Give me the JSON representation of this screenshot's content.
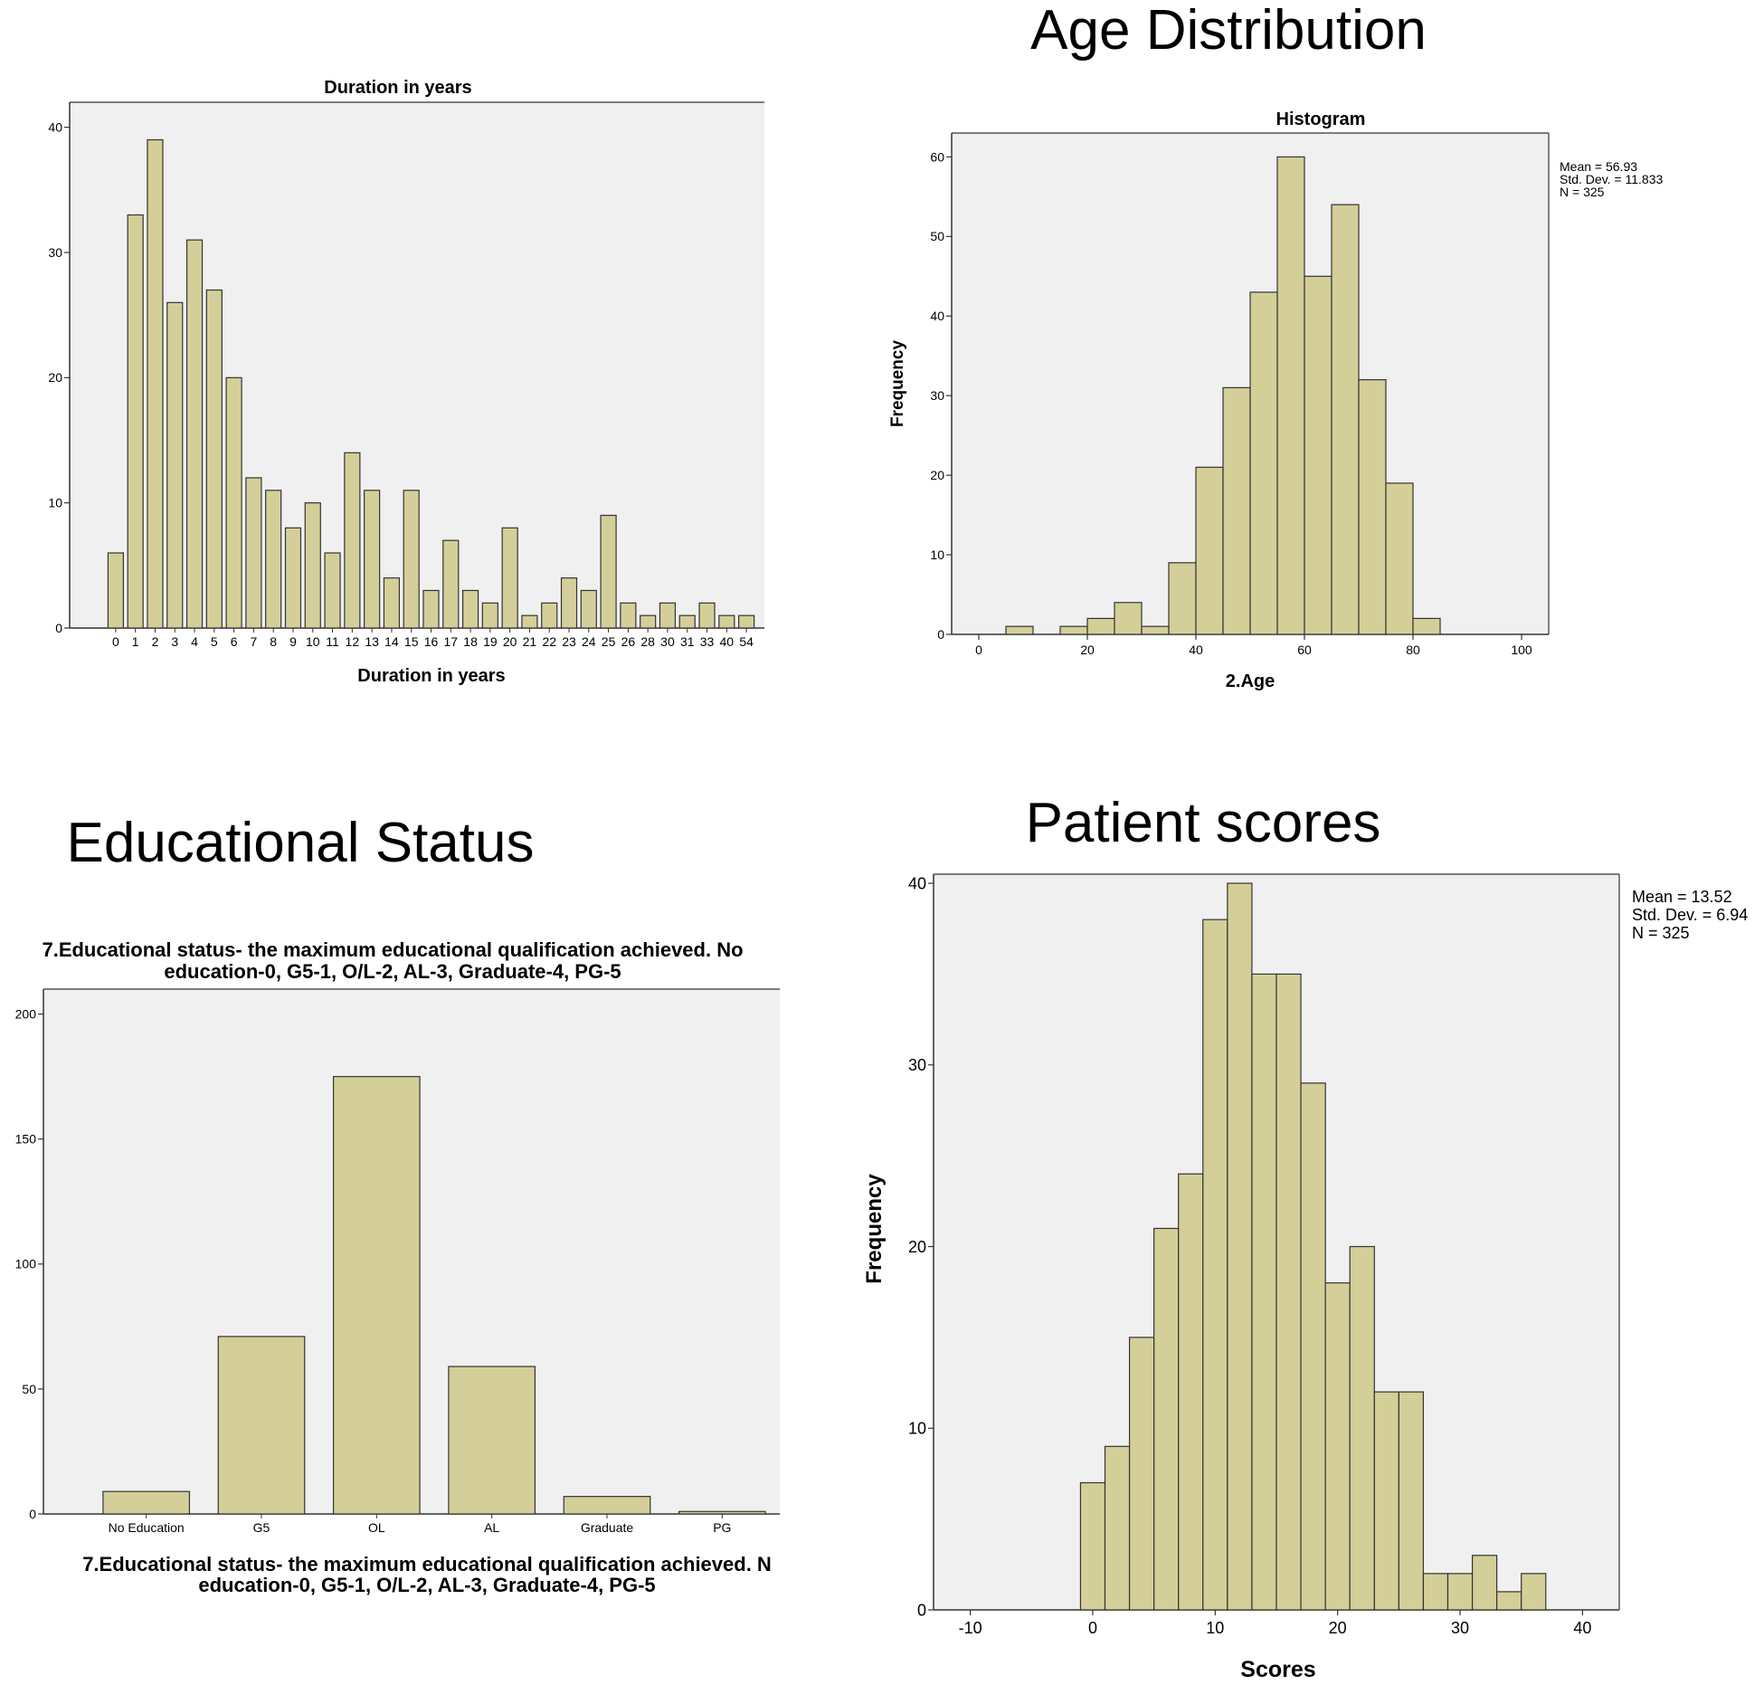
{
  "slide": {
    "headings": [
      "Age Distribution",
      "Educational Status",
      "Patient scores"
    ]
  },
  "chart_data": [
    {
      "id": "duration",
      "type": "bar",
      "title": "Duration in years",
      "xlabel": "Duration in years",
      "ylabel": "",
      "ylim": [
        0,
        42
      ],
      "yticks": [
        0,
        10,
        20,
        30,
        40
      ],
      "grid": false,
      "bar_color": "#d4cf98",
      "background": "#f0f0f0",
      "categories": [
        "0",
        "1",
        "2",
        "3",
        "4",
        "5",
        "6",
        "7",
        "8",
        "9",
        "10",
        "11",
        "12",
        "13",
        "14",
        "15",
        "16",
        "17",
        "18",
        "19",
        "20",
        "21",
        "22",
        "23",
        "24",
        "25",
        "26",
        "28",
        "30",
        "31",
        "33",
        "40",
        "54"
      ],
      "values": [
        6,
        33,
        39,
        26,
        31,
        27,
        20,
        12,
        11,
        8,
        10,
        6,
        14,
        11,
        4,
        11,
        3,
        7,
        3,
        2,
        8,
        1,
        2,
        4,
        3,
        9,
        2,
        1,
        2,
        1,
        2,
        1,
        1
      ]
    },
    {
      "id": "age",
      "type": "bar",
      "heading": "Age Distribution",
      "title": "Histogram",
      "xlabel": "2.Age",
      "ylabel": "Frequency",
      "xlim": [
        -5,
        105
      ],
      "xticks": [
        0,
        20,
        40,
        60,
        80,
        100
      ],
      "ylim": [
        0,
        63
      ],
      "yticks": [
        0,
        10,
        20,
        30,
        40,
        50,
        60
      ],
      "bin_width": 5,
      "bin_starts": [
        5,
        10,
        15,
        20,
        25,
        30,
        35,
        40,
        45,
        50,
        55,
        60,
        65,
        70,
        75,
        80
      ],
      "values": [
        1,
        0,
        1,
        2,
        4,
        1,
        9,
        21,
        31,
        43,
        60,
        45,
        54,
        32,
        19,
        2
      ],
      "stats": [
        "Mean = 56.93",
        "Std. Dev. = 11.833",
        "N = 325"
      ],
      "grid": false,
      "bar_color": "#d4cf98",
      "background": "#f0f0f0"
    },
    {
      "id": "education",
      "type": "bar",
      "heading": "Educational Status",
      "title": "7.Educational status- the maximum educational qualification achieved. No\neducation-0, G5-1, O/L-2,      AL-3,       Graduate-4,       PG-5",
      "xlabel": "7.Educational status- the maximum educational qualification achieved. N\neducation-0, G5-1, O/L-2,      AL-3,       Graduate-4,       PG-5",
      "ylabel": "",
      "ylim": [
        0,
        210
      ],
      "yticks": [
        0,
        50,
        100,
        150,
        200
      ],
      "categories": [
        "No Education",
        "G5",
        "OL",
        "AL",
        "Graduate",
        "PG"
      ],
      "values": [
        9,
        71,
        175,
        59,
        7,
        1
      ],
      "grid": false,
      "bar_color": "#d4cf98",
      "background": "#f0f0f0"
    },
    {
      "id": "scores",
      "type": "bar",
      "heading": "Patient scores",
      "title": "",
      "xlabel": "Scores",
      "ylabel": "Frequency",
      "xlim": [
        -13,
        43
      ],
      "xticks": [
        -10,
        0,
        10,
        20,
        30,
        40
      ],
      "ylim": [
        0,
        40.5
      ],
      "yticks": [
        0,
        10,
        20,
        30,
        40
      ],
      "bin_width": 2,
      "bin_starts": [
        -1,
        1,
        3,
        5,
        7,
        9,
        11,
        13,
        15,
        17,
        19,
        21,
        23,
        25,
        27,
        29,
        31,
        33,
        35
      ],
      "values": [
        7,
        9,
        15,
        21,
        24,
        38,
        40,
        35,
        35,
        29,
        18,
        20,
        12,
        12,
        2,
        2,
        3,
        1,
        2
      ],
      "stats": [
        "Mean = 13.52",
        "Std. Dev. = 6.94",
        "N = 325"
      ],
      "grid": false,
      "bar_color": "#d4cf98",
      "background": "#f0f0f0"
    }
  ]
}
